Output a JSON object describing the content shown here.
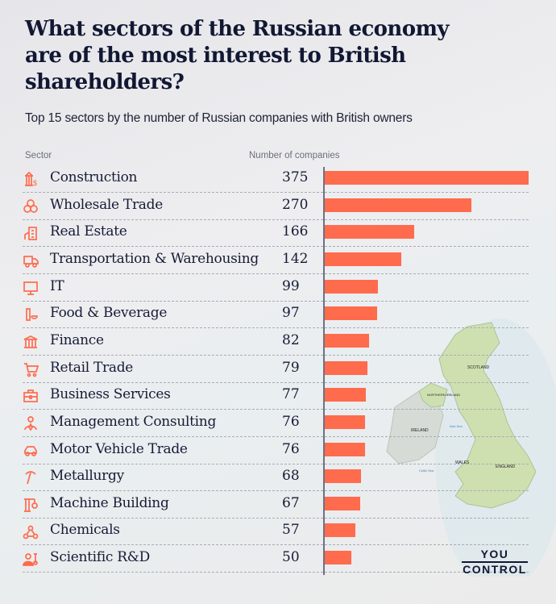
{
  "header": {
    "title": "What sectors of the Russian economy are of the most interest to British shareholders?",
    "subtitle": "Top 15 sectors by the number of Russian companies with British owners"
  },
  "columns": {
    "sector": "Sector",
    "count": "Number of companies"
  },
  "colors": {
    "bar": "#ff6b4d",
    "icon": "#ff6b4d",
    "text": "#141a33"
  },
  "map": {
    "labels": [
      "SCOTLAND",
      "NORTHERN IRELAND",
      "IRELAND",
      "WALES",
      "ENGLAND",
      "Irish Sea",
      "Celtic Sea"
    ]
  },
  "logo": {
    "line1": "YOU",
    "line2": "CONTROL"
  },
  "chart_data": {
    "type": "bar",
    "orientation": "horizontal",
    "title": "What sectors of the Russian economy are of the most interest to British shareholders?",
    "subtitle": "Top 15 sectors by the number of Russian companies with British owners",
    "xlabel": "Number of companies",
    "ylabel": "Sector",
    "xlim": [
      0,
      375
    ],
    "grid": false,
    "categories": [
      "Construction",
      "Wholesale Trade",
      "Real Estate",
      "Transportation & Warehousing",
      "IT",
      "Food & Beverage",
      "Finance",
      "Retail Trade",
      "Business Services",
      "Management Consulting",
      "Motor Vehicle Trade",
      "Metallurgy",
      "Machine Building",
      "Chemicals",
      "Scientific R&D"
    ],
    "icons": [
      "construction-crane-icon",
      "boxes-icon",
      "building-icon",
      "truck-icon",
      "monitor-icon",
      "food-bottle-icon",
      "bank-icon",
      "shopping-cart-icon",
      "briefcase-icon",
      "person-icon",
      "car-icon",
      "pickaxe-icon",
      "machine-crane-icon",
      "molecule-icon",
      "scientist-icon"
    ],
    "values": [
      375,
      270,
      166,
      142,
      99,
      97,
      82,
      79,
      77,
      76,
      76,
      68,
      67,
      57,
      50
    ]
  }
}
